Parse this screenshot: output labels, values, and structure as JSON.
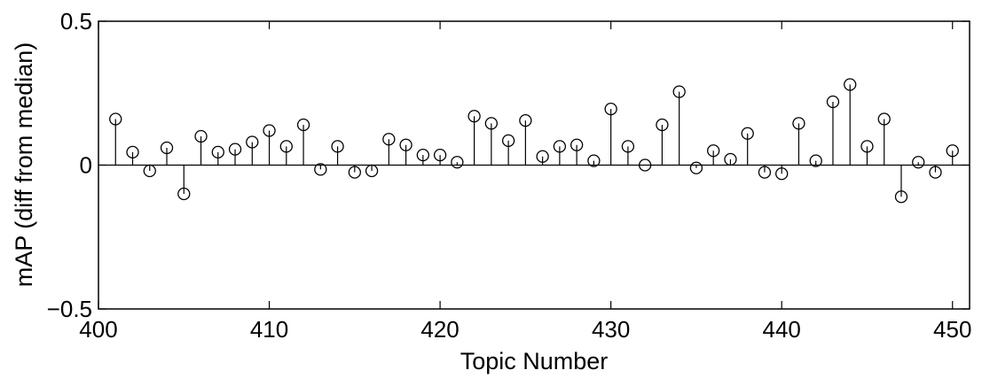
{
  "chart_data": {
    "type": "stem",
    "xlabel": "Topic Number",
    "ylabel": "mAP (diff from median)",
    "xlim": [
      400,
      451
    ],
    "ylim": [
      -0.5,
      0.5
    ],
    "xticks": [
      400,
      410,
      420,
      430,
      440,
      450
    ],
    "yticks": [
      -0.5,
      0,
      0.5
    ],
    "xtick_labels": [
      "400",
      "410",
      "420",
      "430",
      "440",
      "450"
    ],
    "ytick_labels": [
      "−0.5",
      "0",
      "0.5"
    ],
    "grid": false,
    "marker": "circle",
    "x": [
      401,
      402,
      403,
      404,
      405,
      406,
      407,
      408,
      409,
      410,
      411,
      412,
      413,
      414,
      415,
      416,
      417,
      418,
      419,
      420,
      421,
      422,
      423,
      424,
      425,
      426,
      427,
      428,
      429,
      430,
      431,
      432,
      433,
      434,
      435,
      436,
      437,
      438,
      439,
      440,
      441,
      442,
      443,
      444,
      445,
      446,
      447,
      448,
      449,
      450
    ],
    "y": [
      0.16,
      0.045,
      -0.02,
      0.06,
      -0.1,
      0.1,
      0.045,
      0.055,
      0.08,
      0.12,
      0.065,
      0.14,
      -0.015,
      0.065,
      -0.025,
      -0.02,
      0.09,
      0.07,
      0.035,
      0.035,
      0.01,
      0.17,
      0.145,
      0.085,
      0.155,
      0.03,
      0.065,
      0.07,
      0.015,
      0.195,
      0.065,
      0.0,
      0.14,
      0.255,
      -0.01,
      0.05,
      0.02,
      0.11,
      -0.025,
      -0.03,
      0.145,
      0.015,
      0.22,
      0.28,
      0.065,
      0.16,
      -0.11,
      0.01,
      -0.025,
      0.05
    ]
  }
}
